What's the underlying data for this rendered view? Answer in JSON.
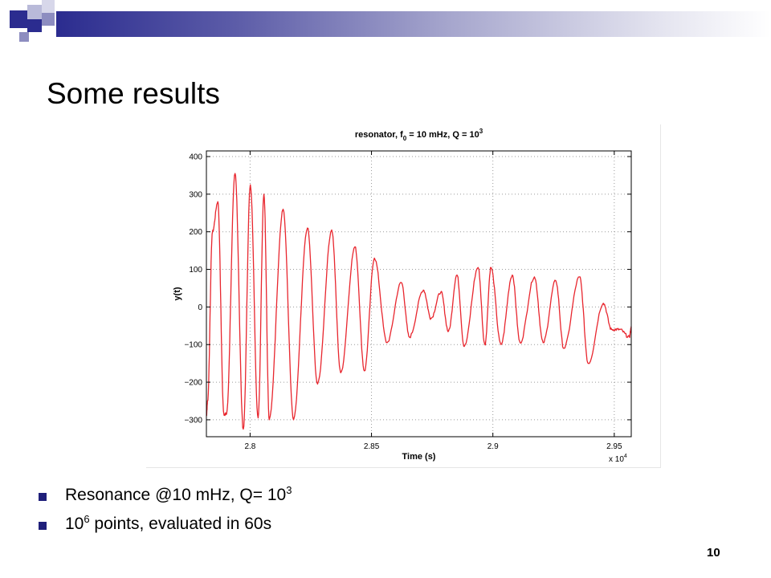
{
  "slide": {
    "title": "Some results",
    "page_number": "10",
    "bullets": [
      {
        "text": "Resonance @10 mHz, Q= 10",
        "sup": "3",
        "text_after": ""
      },
      {
        "text": "10",
        "sup": "6",
        "text_after": " points, evaluated in 60s"
      }
    ],
    "colors": {
      "accent": "#2b2c8f",
      "bullet": "#1f1f7a",
      "trace": "#e8262e"
    }
  },
  "chart_data": {
    "type": "line",
    "title_parts": {
      "prefix": "resonator, f",
      "sub": "0",
      "middle": " = 10 mHz, Q = 10",
      "sup": "3"
    },
    "xlabel": "Time (s)",
    "ylabel": "y(t)",
    "x_multiplier": {
      "prefix": "x 10",
      "sup": "4"
    },
    "xlim": [
      2.782,
      2.957
    ],
    "ylim": [
      -345,
      415
    ],
    "xticks": [
      2.8,
      2.85,
      2.9,
      2.95
    ],
    "xtick_labels": [
      "2.8",
      "2.85",
      "2.9",
      "2.95"
    ],
    "yticks": [
      400,
      300,
      200,
      100,
      0,
      -100,
      -200,
      -300
    ],
    "ytick_labels": [
      "400",
      "300",
      "200",
      "100",
      "0",
      "−100",
      "−200",
      "−300"
    ],
    "grid": true,
    "legend": "none",
    "series": [
      {
        "color": "#e8262e",
        "x": [
          2.782,
          2.7825,
          2.7845,
          2.7867,
          2.7892,
          2.7903,
          2.7938,
          2.7972,
          2.8001,
          2.8033,
          2.8057,
          2.8079,
          2.8136,
          2.8179,
          2.8236,
          2.8278,
          2.8336,
          2.8373,
          2.8432,
          2.8471,
          2.8512,
          2.8564,
          2.8623,
          2.8656,
          2.8714,
          2.8745,
          2.8786,
          2.8817,
          2.8852,
          2.8882,
          2.8939,
          2.8967,
          2.8992,
          2.9033,
          2.908,
          2.9112,
          2.9171,
          2.9207,
          2.9259,
          2.9292,
          2.9357,
          2.9393,
          2.9455,
          2.9489,
          2.9522,
          2.9562,
          2.957
        ],
        "y": [
          -290,
          -250,
          200,
          280,
          -285,
          -285,
          355,
          -325,
          325,
          -295,
          300,
          -300,
          260,
          -300,
          210,
          -205,
          205,
          -175,
          160,
          -170,
          130,
          -95,
          65,
          -80,
          45,
          -30,
          40,
          -65,
          85,
          -105,
          105,
          -100,
          105,
          -100,
          85,
          -95,
          80,
          -95,
          70,
          -110,
          80,
          -150,
          10,
          -60,
          -60,
          -80,
          -55
        ]
      }
    ]
  }
}
